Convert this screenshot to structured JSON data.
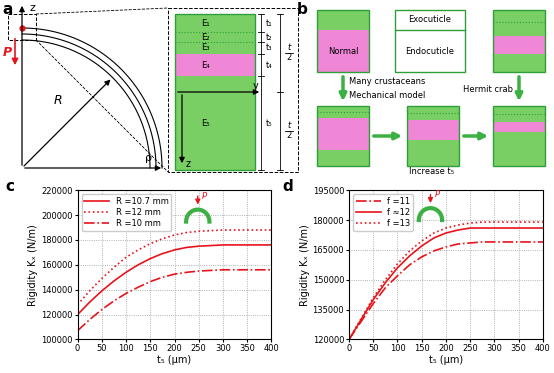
{
  "chart_data": [
    {
      "type": "line",
      "panel": "c",
      "annotations": [
        "P"
      ],
      "xlabel": "t₅ (μm)",
      "ylabel": "Rigidity Kₓ (N/m)",
      "x": [
        0,
        25,
        50,
        75,
        100,
        125,
        150,
        175,
        200,
        225,
        250,
        275,
        300,
        325,
        350,
        375,
        400
      ],
      "xlim": [
        0,
        400
      ],
      "xticks": [
        0,
        50,
        100,
        150,
        200,
        250,
        300,
        350,
        400
      ],
      "ylim": [
        100000,
        220000
      ],
      "yticks": [
        100000,
        120000,
        140000,
        160000,
        180000,
        200000,
        220000
      ],
      "grid": true,
      "legend": "upper left",
      "series": [
        {
          "name": "R =10.7 mm",
          "color": "#e8141c",
          "line_style": "solid",
          "values": [
            120000,
            130000,
            139000,
            147000,
            154000,
            160000,
            165000,
            169000,
            172000,
            174000,
            175000,
            175500,
            176000,
            176000,
            176000,
            176000,
            176000
          ]
        },
        {
          "name": "R =12 mm",
          "color": "#e8141c",
          "line_style": "dotted",
          "values": [
            128000,
            139000,
            149000,
            158000,
            166000,
            172000,
            177000,
            181000,
            184000,
            186000,
            187000,
            187500,
            188000,
            188000,
            188000,
            188000,
            188000
          ]
        },
        {
          "name": "R =10 mm",
          "color": "#e8141c",
          "line_style": "dashdot",
          "values": [
            107000,
            116000,
            124000,
            131000,
            137000,
            142000,
            146500,
            150000,
            152500,
            154000,
            155000,
            155500,
            156000,
            156000,
            156000,
            156000,
            156000
          ]
        }
      ]
    },
    {
      "type": "line",
      "panel": "d",
      "annotations": [
        "P"
      ],
      "xlabel": "t₅ (μm)",
      "ylabel": "Rigidity Kₓ (N/m)",
      "x": [
        0,
        25,
        50,
        75,
        100,
        125,
        150,
        175,
        200,
        225,
        250,
        275,
        300,
        325,
        350,
        375,
        400
      ],
      "xlim": [
        0,
        400
      ],
      "xticks": [
        0,
        50,
        100,
        150,
        200,
        250,
        300,
        350,
        400
      ],
      "ylim": [
        120000,
        195000
      ],
      "yticks": [
        120000,
        135000,
        150000,
        165000,
        180000,
        195000
      ],
      "grid": true,
      "legend": "upper left",
      "series": [
        {
          "name": "f =11",
          "color": "#e8141c",
          "line_style": "dashdot",
          "values": [
            120000,
            129000,
            138000,
            146000,
            152000,
            157500,
            161500,
            164500,
            166500,
            168000,
            168500,
            169000,
            169000,
            169000,
            169000,
            169000,
            169000
          ]
        },
        {
          "name": "f ≈12",
          "color": "#e8141c",
          "line_style": "solid",
          "values": [
            120000,
            130000,
            140000,
            148500,
            156000,
            162000,
            167000,
            171000,
            173500,
            175000,
            176000,
            176000,
            176000,
            176000,
            176000,
            176000,
            176000
          ]
        },
        {
          "name": "f =13",
          "color": "#e8141c",
          "line_style": "dotted",
          "values": [
            120000,
            130500,
            141000,
            150000,
            158000,
            164500,
            169500,
            173500,
            176000,
            177500,
            178500,
            179000,
            179000,
            179000,
            179000,
            179000,
            179000
          ]
        }
      ]
    }
  ],
  "diagrams": {
    "a": {
      "label": "a",
      "axis_z": "z",
      "axis_rho": "ρ",
      "load": "P",
      "radius": "R",
      "layers": [
        {
          "modulus": "E₁",
          "thickness": "t₁"
        },
        {
          "modulus": "E₂",
          "thickness": "t₂"
        },
        {
          "modulus": "E₃",
          "thickness": "t₃"
        },
        {
          "modulus": "E₄",
          "thickness": "t₄"
        },
        {
          "modulus": "E₅",
          "thickness": "t₅"
        }
      ],
      "half_thickness": {
        "numerator": "t",
        "denominator": "2"
      },
      "inset_axes": [
        "y",
        "z"
      ]
    },
    "b": {
      "label": "b",
      "normal": "Normal",
      "exocuticle": "Exocuticle",
      "endocuticle": "Endocuticle",
      "source": "Many crustaceans",
      "model": "Mechanical model",
      "target": "Hermit crab",
      "trend": "Increase t₅"
    }
  }
}
